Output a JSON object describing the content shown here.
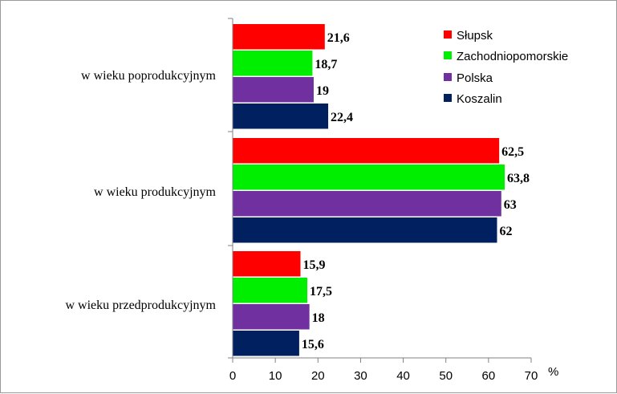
{
  "chart_data": {
    "type": "bar",
    "orientation": "horizontal",
    "categories": [
      "w wieku poprodukcyjnym",
      "w wieku produkcyjnym",
      "w wieku przedprodukcyjnym"
    ],
    "series": [
      {
        "name": "Słupsk",
        "color": "#ff0000",
        "values": [
          21.6,
          62.5,
          15.9
        ],
        "labels": [
          "21,6",
          "62,5",
          "15,9"
        ]
      },
      {
        "name": "Zachodniopomorskie",
        "color": "#00ee00",
        "values": [
          18.7,
          63.8,
          17.5
        ],
        "labels": [
          "18,7",
          "63,8",
          "17,5"
        ]
      },
      {
        "name": "Polska",
        "color": "#7030a0",
        "values": [
          19,
          63,
          18
        ],
        "labels": [
          "19",
          "63",
          "18"
        ]
      },
      {
        "name": "Koszalin",
        "color": "#002060",
        "values": [
          22.4,
          62,
          15.6
        ],
        "labels": [
          "22,4",
          "62",
          "15,6"
        ]
      }
    ],
    "xticks": [
      0,
      10,
      20,
      30,
      40,
      50,
      60,
      70
    ],
    "xlim": [
      0,
      70
    ],
    "xunit": "%",
    "grid": false,
    "legend_position": "top-right"
  }
}
